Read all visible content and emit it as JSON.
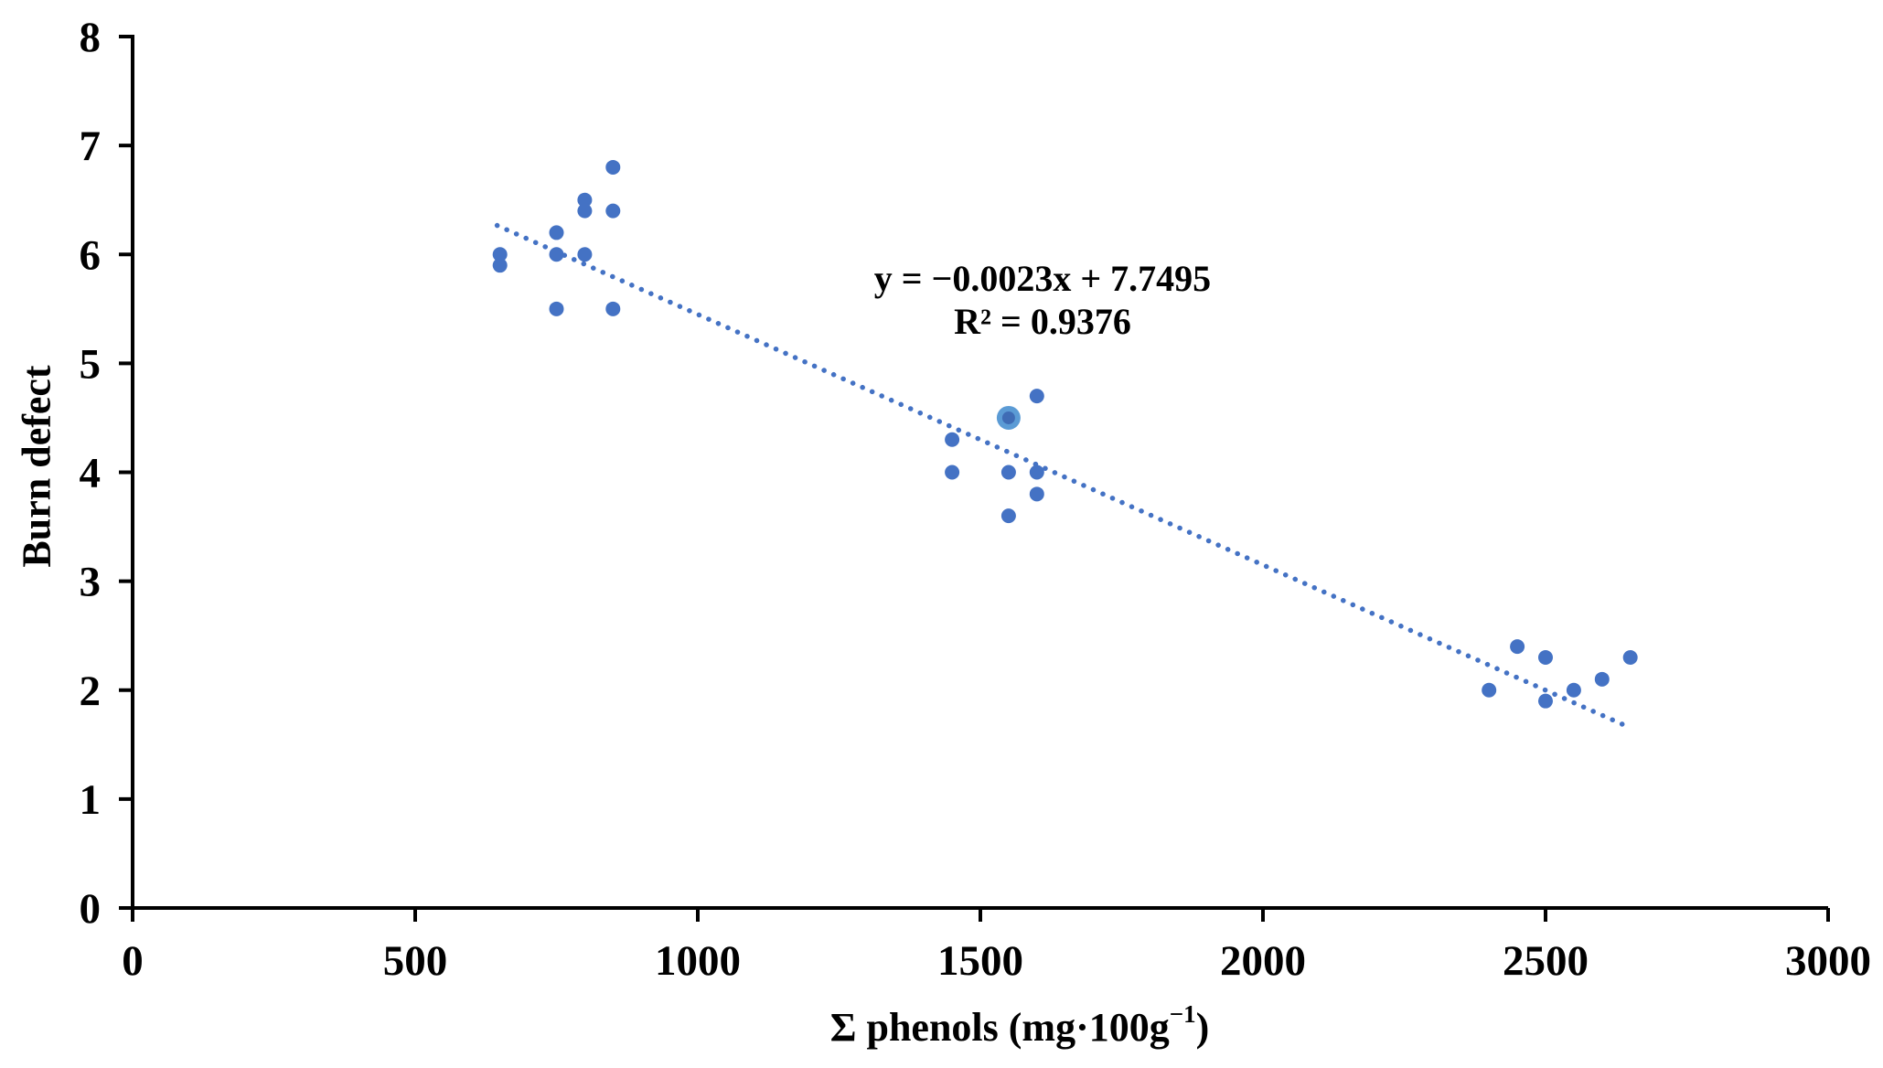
{
  "figure": {
    "background": "#ffffff",
    "equation_line1": "y = −0.0023x + 7.7495",
    "equation_line2": "R² = 0.9376",
    "ylabel": "Burn defect",
    "xlabel_base": "Σ phenols (mg·100g",
    "xlabel_sup": "−1",
    "xlabel_close": ")"
  },
  "chart_data": {
    "type": "scatter",
    "title": "",
    "xlabel": "Σ phenols (mg·100g−1)",
    "ylabel": "Burn defect",
    "xlim": [
      0,
      3000
    ],
    "ylim": [
      0,
      8
    ],
    "xticks": [
      0,
      500,
      1000,
      1500,
      2000,
      2500,
      3000
    ],
    "yticks": [
      0,
      1,
      2,
      3,
      4,
      5,
      6,
      7,
      8
    ],
    "grid": false,
    "legend": false,
    "points": [
      [
        650,
        6.0
      ],
      [
        650,
        5.9
      ],
      [
        750,
        6.2
      ],
      [
        750,
        6.0
      ],
      [
        750,
        5.5
      ],
      [
        800,
        6.5
      ],
      [
        800,
        6.4
      ],
      [
        800,
        6.0
      ],
      [
        850,
        6.8
      ],
      [
        850,
        6.4
      ],
      [
        850,
        5.5
      ],
      [
        1450,
        4.3
      ],
      [
        1450,
        4.0
      ],
      [
        1550,
        4.0
      ],
      [
        1550,
        3.6
      ],
      [
        1600,
        4.7
      ],
      [
        1600,
        4.0
      ],
      [
        1600,
        3.8
      ],
      [
        2400,
        2.0
      ],
      [
        2450,
        2.4
      ],
      [
        2500,
        2.3
      ],
      [
        2500,
        1.9
      ],
      [
        2550,
        2.0
      ],
      [
        2600,
        2.1
      ],
      [
        2650,
        2.3
      ]
    ],
    "highlight_point": [
      1550,
      4.5
    ],
    "trendline": {
      "style": "dotted",
      "slope": -0.0023,
      "intercept": 7.7495,
      "x_start": 645,
      "x_end": 2645,
      "equation": "y = −0.0023x + 7.7495",
      "r_squared": "R² = 0.9376"
    },
    "annotations": [
      "y = −0.0023x + 7.7495",
      "R² = 0.9376"
    ],
    "colors": {
      "marker": "#4472C4",
      "trendline": "#4472C4",
      "highlight_outer": "#5B9BD5",
      "highlight_inner": "#3F6CB5",
      "axis": "#000000",
      "text": "#000000"
    },
    "marker_radius_px": 8,
    "legend_position": "none"
  }
}
